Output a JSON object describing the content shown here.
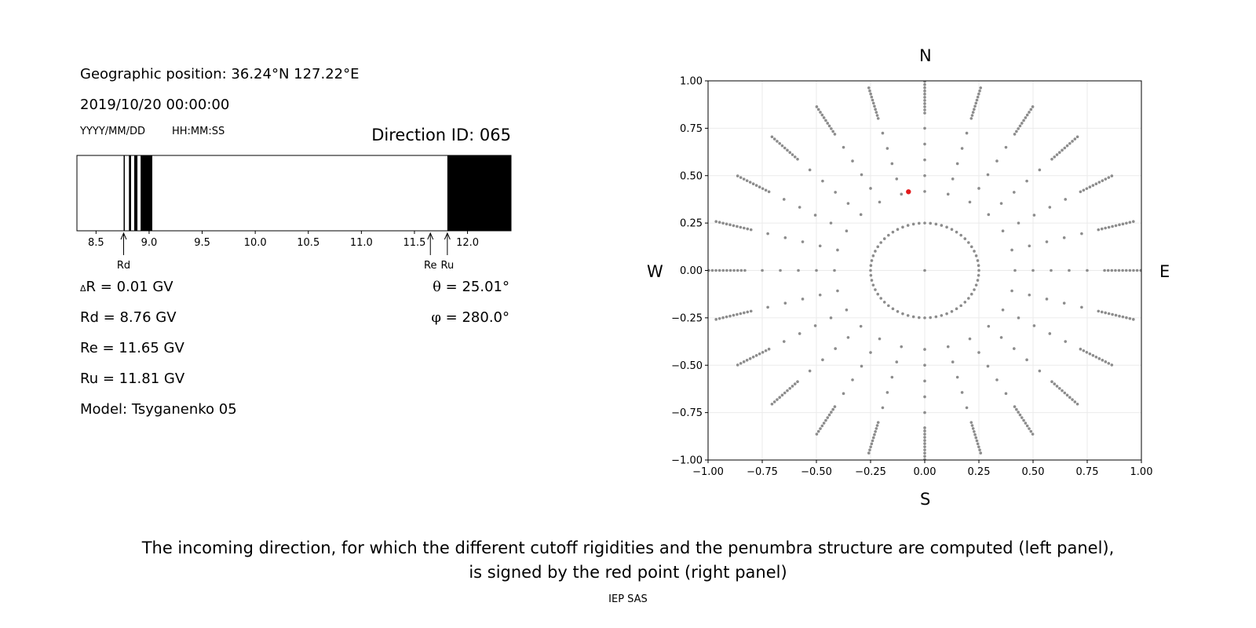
{
  "left_panel": {
    "geo_position": "Geographic position: 36.24°N 127.22°E",
    "datetime": "2019/10/20 00:00:00",
    "date_format": "YYYY/MM/DD",
    "time_format": "HH:MM:SS",
    "direction_id": "Direction ID: 065",
    "delta_r_symbol": "Δ",
    "delta_r_text": "R = 0.01 GV",
    "rd_text": "Rd = 8.76 GV",
    "re_text": "Re = 11.65 GV",
    "ru_text": "Ru = 11.81 GV",
    "model_text": "Model: Tsyganenko 05",
    "theta_symbol": "θ",
    "theta_text": "= 25.01°",
    "phi_symbol": "φ",
    "phi_text": "= 280.0°"
  },
  "right_panel": {
    "north": "N",
    "south": "S",
    "west": "W",
    "east": "E"
  },
  "caption": {
    "line1": "The incoming direction, for which the different cutoff rigidities and the penumbra structure are computed (left panel),",
    "line2": "is signed by the red point (right panel)",
    "credit": "IEP SAS"
  },
  "chart_data": [
    {
      "type": "bar",
      "description": "penumbra structure",
      "x_range": [
        8.32,
        12.41
      ],
      "x_ticks": [
        "8.5",
        "9.0",
        "9.5",
        "10.0",
        "10.5",
        "11.0",
        "11.5",
        "12.0"
      ],
      "x_tick_values": [
        8.5,
        9.0,
        9.5,
        10.0,
        10.5,
        11.0,
        11.5,
        12.0
      ],
      "forbidden_bands": [
        [
          8.76,
          8.77
        ],
        [
          8.81,
          8.83
        ],
        [
          8.86,
          8.89
        ],
        [
          8.92,
          9.03
        ],
        [
          11.81,
          12.41
        ]
      ],
      "markers": [
        {
          "label": "Rd",
          "value": 8.76
        },
        {
          "label": "Re",
          "value": 11.65
        },
        {
          "label": "Ru",
          "value": 11.81
        }
      ],
      "colors": {
        "forbidden": "#000000",
        "allowed": "#ffffff"
      }
    },
    {
      "type": "scatter",
      "description": "grid of incoming directions",
      "xlim": [
        -1.0,
        1.0
      ],
      "ylim": [
        -1.0,
        1.0
      ],
      "x_ticks": [
        "−1.00",
        "−0.75",
        "−0.50",
        "−0.25",
        "0.00",
        "0.25",
        "0.50",
        "0.75",
        "1.00"
      ],
      "y_ticks": [
        "1.00",
        "0.75",
        "0.50",
        "0.25",
        "0.00",
        "−0.25",
        "−0.50",
        "−0.75",
        "−1.00"
      ],
      "tick_values": [
        -1.0,
        -0.75,
        -0.5,
        -0.25,
        0.0,
        0.25,
        0.5,
        0.75,
        1.0
      ],
      "grid": true,
      "grid_directions": {
        "inner_circle_radius": 0.25,
        "ring_spacing": 0.0833,
        "azimuth_step_deg": 15,
        "dense_from_radius": 0.83,
        "dense_spacing": 0.0167,
        "center_point": true
      },
      "highlight_point": {
        "x": -0.075,
        "y": 0.415,
        "theta_deg": 25.01,
        "phi_deg": 280.0
      },
      "colors": {
        "grid_points": "#8c8c8c",
        "highlight": "#e31a1c"
      }
    }
  ]
}
